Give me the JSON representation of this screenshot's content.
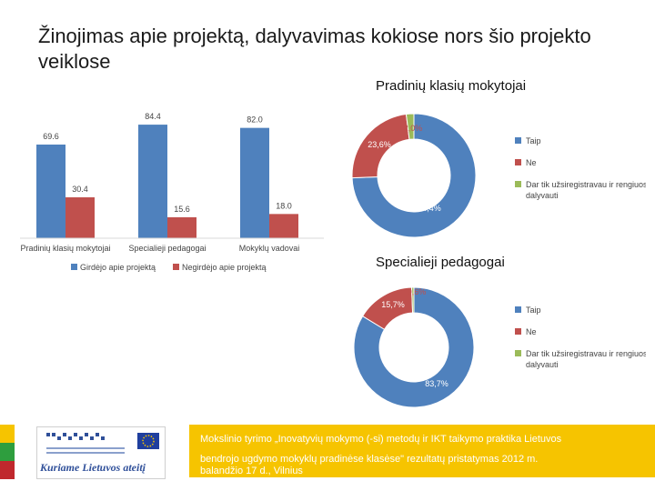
{
  "title": "Žinojimas apie projektą, dalyvavimas kokiose nors šio projekto veiklose",
  "chart_data": [
    {
      "type": "bar",
      "categories": [
        "Pradinių klasių mokytojai",
        "Specialieji pedagogai",
        "Mokyklų vadovai"
      ],
      "series": [
        {
          "name": "Girdėjo apie projektą",
          "values": [
            69.6,
            84.4,
            82.0
          ],
          "labels": [
            "69.6",
            "84.4",
            "82.0"
          ],
          "color": "#4f81bd"
        },
        {
          "name": "Negirdėjo apie projektą",
          "values": [
            30.4,
            15.6,
            18.0
          ],
          "labels": [
            "30.4",
            "15.6",
            "18.0"
          ],
          "color": "#c0504d"
        }
      ],
      "ylim": [
        0,
        100
      ],
      "legend": "bottom"
    },
    {
      "type": "pie",
      "title": "Pradinių klasių mokytojai",
      "slices": [
        {
          "label": "Taip",
          "value": 74.4,
          "text": "74,4%",
          "color": "#4f81bd"
        },
        {
          "label": "Ne",
          "value": 23.6,
          "text": "23,6%",
          "color": "#c0504d"
        },
        {
          "label": "Dar tik užsiregistravau ir rengiuosi dalyvauti",
          "value": 2.0,
          "text": "2,0%",
          "color": "#9bbb59"
        }
      ],
      "legend": "right"
    },
    {
      "type": "pie",
      "title": "Specialieji pedagogai",
      "slices": [
        {
          "label": "Taip",
          "value": 83.7,
          "text": "83,7%",
          "color": "#4f81bd"
        },
        {
          "label": "Ne",
          "value": 15.7,
          "text": "15,7%",
          "color": "#c0504d"
        },
        {
          "label": "Dar tik užsiregistravau ir rengiuosi dalyvauti",
          "value": 0.6,
          "text": "0,6%",
          "color": "#9bbb59"
        }
      ],
      "legend": "right"
    }
  ],
  "footer": {
    "logo_caption": "Kuriame Lietuvos ateitį",
    "line1": "Mokslinio tyrimo „Inovatyvių mokymo (-si) metodų ir IKT taikymo praktika Lietuvos",
    "line2": "bendrojo ugdymo mokyklų pradinėse klasėse\" rezultatų pristatymas  2012 m.",
    "line3": "balandžio 17 d., Vilnius",
    "stripe_colors": [
      "#f6c400",
      "#2e9e3e",
      "#c0282d"
    ]
  }
}
